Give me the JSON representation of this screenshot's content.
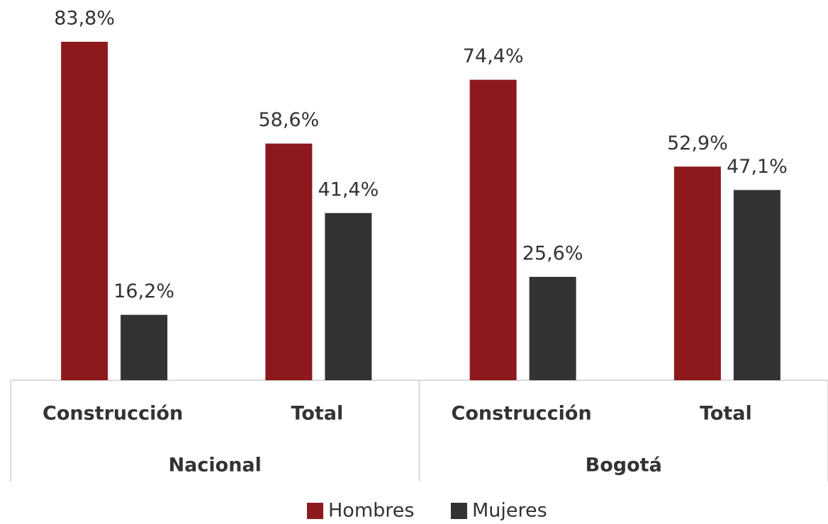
{
  "chart_data": {
    "type": "bar",
    "categories": [
      "Construcción",
      "Total",
      "Construcción",
      "Total"
    ],
    "groups": [
      "Nacional",
      "Bogotá"
    ],
    "series": [
      {
        "name": "Hombres",
        "color": "#8e191c",
        "values": [
          83.8,
          58.6,
          74.4,
          52.9
        ],
        "value_labels": [
          "83,8%",
          "58,6%",
          "74,4%",
          "52,9%"
        ]
      },
      {
        "name": "Mujeres",
        "color": "#333333",
        "values": [
          16.2,
          41.4,
          25.6,
          47.1
        ],
        "value_labels": [
          "16,2%",
          "41,4%",
          "25,6%",
          "47,1%"
        ]
      }
    ],
    "legend": "bottom"
  }
}
